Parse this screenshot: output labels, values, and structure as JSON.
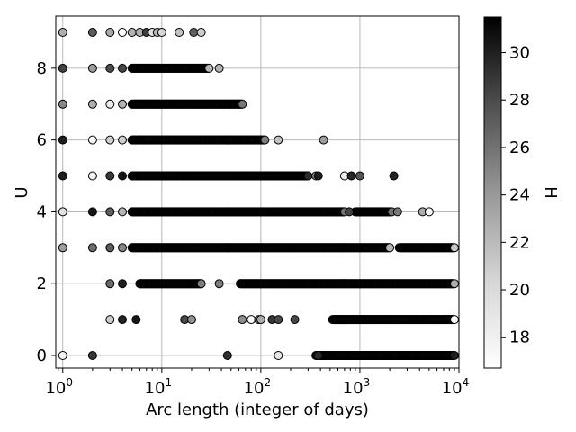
{
  "chart_data": {
    "type": "scatter",
    "title": "",
    "xlabel": "Arc length (integer of days)",
    "ylabel": "U",
    "xscale": "log",
    "xlim": [
      0.85,
      10000
    ],
    "ylim": [
      -0.35,
      9.45
    ],
    "grid": true,
    "x_ticks": [
      {
        "value": 1,
        "base": "10",
        "exp": "0"
      },
      {
        "value": 10,
        "base": "10",
        "exp": "1"
      },
      {
        "value": 100,
        "base": "10",
        "exp": "2"
      },
      {
        "value": 1000,
        "base": "10",
        "exp": "3"
      },
      {
        "value": 10000,
        "base": "10",
        "exp": "4"
      }
    ],
    "y_ticks": [
      {
        "value": 0,
        "label": "0"
      },
      {
        "value": 2,
        "label": "2"
      },
      {
        "value": 4,
        "label": "4"
      },
      {
        "value": 6,
        "label": "6"
      },
      {
        "value": 8,
        "label": "8"
      }
    ],
    "colorbar": {
      "label": "H",
      "range": [
        16.7,
        31.5
      ],
      "colormap": "Greys",
      "ticks": [
        {
          "value": 18,
          "label": "18"
        },
        {
          "value": 20,
          "label": "20"
        },
        {
          "value": 22,
          "label": "22"
        },
        {
          "value": 24,
          "label": "24"
        },
        {
          "value": 26,
          "label": "26"
        },
        {
          "value": 28,
          "label": "28"
        },
        {
          "value": 30,
          "label": "30"
        }
      ]
    },
    "series": [
      {
        "u": 9,
        "dense": [
          [
            1,
            1
          ],
          [
            2,
            2
          ],
          [
            3,
            3
          ],
          [
            4,
            4
          ],
          [
            5,
            5
          ],
          [
            6,
            6
          ],
          [
            7,
            7
          ],
          [
            8,
            8
          ],
          [
            9,
            9
          ],
          [
            10,
            10
          ]
        ],
        "extra": [
          15,
          21,
          25
        ]
      },
      {
        "u": 8,
        "dense": [
          [
            1,
            1
          ],
          [
            2,
            2
          ],
          [
            3,
            3
          ],
          [
            4,
            4
          ],
          [
            5,
            26
          ],
          [
            26,
            30
          ]
        ],
        "extra": [
          38
        ]
      },
      {
        "u": 7,
        "dense": [
          [
            1,
            1
          ],
          [
            2,
            2
          ],
          [
            3,
            3
          ],
          [
            4,
            4
          ],
          [
            5,
            65
          ]
        ],
        "extra": []
      },
      {
        "u": 6,
        "dense": [
          [
            1,
            1
          ],
          [
            2,
            2
          ],
          [
            3,
            3
          ],
          [
            4,
            4
          ],
          [
            5,
            110
          ]
        ],
        "extra": [
          150,
          430
        ]
      },
      {
        "u": 5,
        "dense": [
          [
            1,
            1
          ],
          [
            2,
            2
          ],
          [
            3,
            3
          ],
          [
            4,
            4
          ],
          [
            5,
            300
          ]
        ],
        "extra": [
          360,
          380,
          700,
          820,
          1000,
          2200
        ]
      },
      {
        "u": 4,
        "dense": [
          [
            1,
            1
          ],
          [
            2,
            2
          ],
          [
            3,
            3
          ],
          [
            4,
            4
          ],
          [
            5,
            700
          ],
          [
            900,
            2100
          ]
        ],
        "extra": [
          780,
          2400,
          4300,
          5000
        ]
      },
      {
        "u": 3,
        "dense": [
          [
            1,
            1
          ],
          [
            2,
            2
          ],
          [
            3,
            3
          ],
          [
            4,
            4
          ],
          [
            5,
            2000
          ],
          [
            2500,
            9000
          ]
        ],
        "extra": []
      },
      {
        "u": 2,
        "dense": [
          [
            3,
            3
          ],
          [
            4,
            4
          ],
          [
            6,
            25
          ],
          [
            62,
            9000
          ]
        ],
        "extra": [
          38
        ]
      },
      {
        "u": 1,
        "dense": [
          [
            530,
            9000
          ]
        ],
        "extra": [
          3,
          4,
          5.5,
          17,
          20,
          65,
          80,
          95,
          100,
          130,
          150,
          220
        ]
      },
      {
        "u": 0,
        "dense": [
          [
            360,
            9000
          ]
        ],
        "extra": [
          1,
          2,
          46,
          150,
          380
        ]
      }
    ]
  }
}
